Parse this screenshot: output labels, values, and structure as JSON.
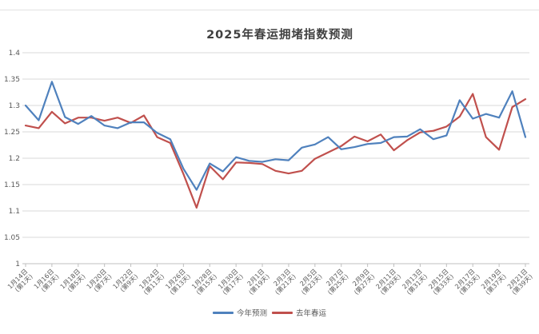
{
  "chart": {
    "title": "2025年春运拥堵指数预测",
    "colors": {
      "series_this_year": "#4F81BD",
      "series_last_year": "#C0504D",
      "gridline": "#D9D9D9",
      "axis_line": "#BFBFBF",
      "tick_text": "#595959",
      "title_text": "#3F3F3F"
    }
  },
  "chart_data": {
    "type": "line",
    "title": "2025年春运拥堵指数预测",
    "grid": "horizontal",
    "legend_position": "bottom",
    "ylim": [
      1.0,
      1.4
    ],
    "y_tick_labels": [
      "1",
      "1.05",
      "1.1",
      "1.15",
      "1.2",
      "1.25",
      "1.3",
      "1.35",
      "1.4"
    ],
    "y_tick_values": [
      1.0,
      1.05,
      1.1,
      1.15,
      1.2,
      1.25,
      1.3,
      1.35,
      1.4
    ],
    "x_points_total": 39,
    "x_label_every": 2,
    "x_tick_labels": [
      "1月14日(第1天)",
      "1月16日(第3天)",
      "1月18日(第5天)",
      "1月20日(第7天)",
      "1月22日(第9天)",
      "1月24日(第11天)",
      "1月26日(第13天)",
      "1月28日(第15天)",
      "1月30日(第17天)",
      "2月1日(第19天)",
      "2月3日(第21天)",
      "2月5日(第23天)",
      "2月7日(第25天)",
      "2月9日(第27天)",
      "2月11日(第29天)",
      "2月13日(第31天)",
      "2月15日(第33天)",
      "2月17日(第35天)",
      "2月19日(第37天)",
      "2月21日(第39天)"
    ],
    "series": [
      {
        "name": "今年预测",
        "color": "#4F81BD",
        "values": [
          1.3,
          1.272,
          1.345,
          1.278,
          1.265,
          1.28,
          1.262,
          1.257,
          1.268,
          1.268,
          1.248,
          1.236,
          1.18,
          1.14,
          1.19,
          1.175,
          1.202,
          1.195,
          1.193,
          1.198,
          1.196,
          1.22,
          1.226,
          1.24,
          1.217,
          1.221,
          1.227,
          1.229,
          1.24,
          1.241,
          1.255,
          1.236,
          1.243,
          1.31,
          1.275,
          1.284,
          1.277,
          1.327,
          1.24
        ]
      },
      {
        "name": "去年春运",
        "color": "#C0504D",
        "values": [
          1.262,
          1.257,
          1.288,
          1.266,
          1.277,
          1.277,
          1.271,
          1.277,
          1.267,
          1.281,
          1.24,
          1.229,
          1.17,
          1.106,
          1.185,
          1.16,
          1.192,
          1.191,
          1.189,
          1.176,
          1.171,
          1.176,
          1.199,
          1.211,
          1.223,
          1.241,
          1.232,
          1.245,
          1.215,
          1.234,
          1.249,
          1.252,
          1.26,
          1.279,
          1.322,
          1.24,
          1.216,
          1.297,
          1.312
        ]
      }
    ]
  }
}
